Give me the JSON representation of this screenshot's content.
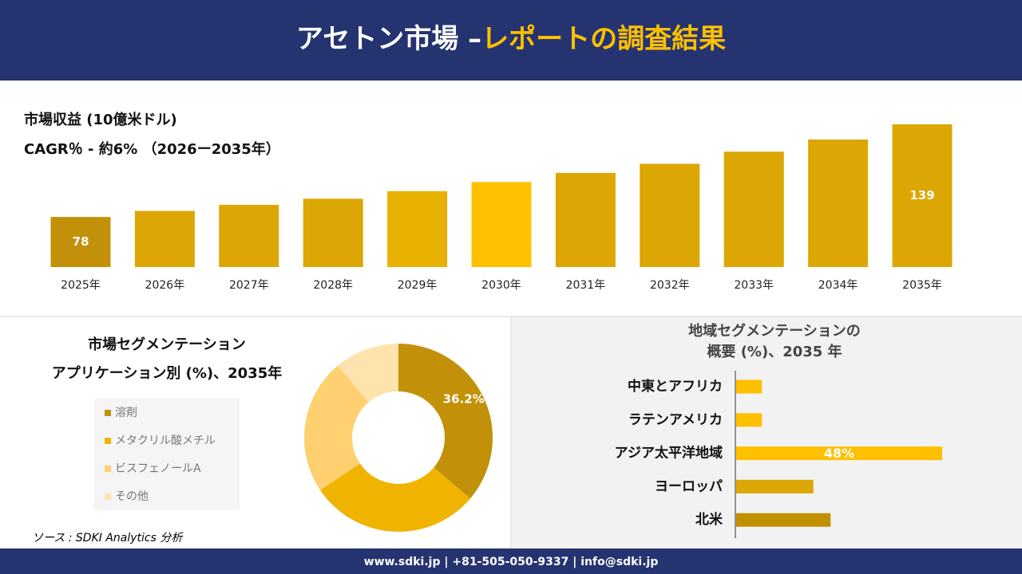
{
  "header": {
    "title_white": "アセトン市場 –",
    "title_yellow": "レポートの調査結果"
  },
  "chart_data": [
    {
      "type": "bar",
      "title": "市場収益 (10億米ドル)",
      "subtitle": "CAGR％ - 約6% （2026ー2035年）",
      "categories": [
        "2025年",
        "2026年",
        "2027年",
        "2028年",
        "2029年",
        "2030年",
        "2031年",
        "2032年",
        "2033年",
        "2034年",
        "2035年"
      ],
      "values": [
        78,
        82,
        86,
        90,
        95,
        101,
        107,
        113,
        121,
        129,
        139
      ],
      "show_label": [
        true,
        false,
        false,
        false,
        false,
        false,
        false,
        false,
        false,
        false,
        true
      ],
      "colors": [
        "#c39109",
        "#dca704",
        "#dca704",
        "#dca704",
        "#e8b000",
        "#ffc000",
        "#dca704",
        "#dca704",
        "#dca704",
        "#dca704",
        "#dca704"
      ],
      "ylim": [
        45,
        150
      ]
    },
    {
      "type": "donut",
      "title": "市場セグメンテーション",
      "subtitle": "アプリケーション別 (%)、2035年",
      "categories": [
        "溶剤",
        "メタクリル酸メチル",
        "ビスフェノールA",
        "その他"
      ],
      "values": [
        36.2,
        29.4,
        23.3,
        11.1
      ],
      "value_labels": [
        "36.2%",
        null,
        null,
        null
      ],
      "colors": [
        "#c39109",
        "#f0b400",
        "#ffd070",
        "#ffe3ae"
      ]
    },
    {
      "type": "hbar",
      "title": "地域セグメンテーションの",
      "subtitle": "概要 (%)、2035 年",
      "categories": [
        "中東とアフリカ",
        "ラテンアメリカ",
        "アジア太平洋地域",
        "ヨーロッパ",
        "北米"
      ],
      "values": [
        6,
        6,
        48,
        18,
        22
      ],
      "value_labels": [
        null,
        null,
        "48%",
        null,
        null
      ],
      "colors": [
        "#ffc000",
        "#ffc000",
        "#ffc000",
        "#dca704",
        "#c09000"
      ],
      "xlim": [
        0,
        50
      ]
    }
  ],
  "source": "ソース : SDKI Analytics 分析",
  "footer": "www.sdki.jp | +81-505-050-9337 | info@sdki.jp"
}
